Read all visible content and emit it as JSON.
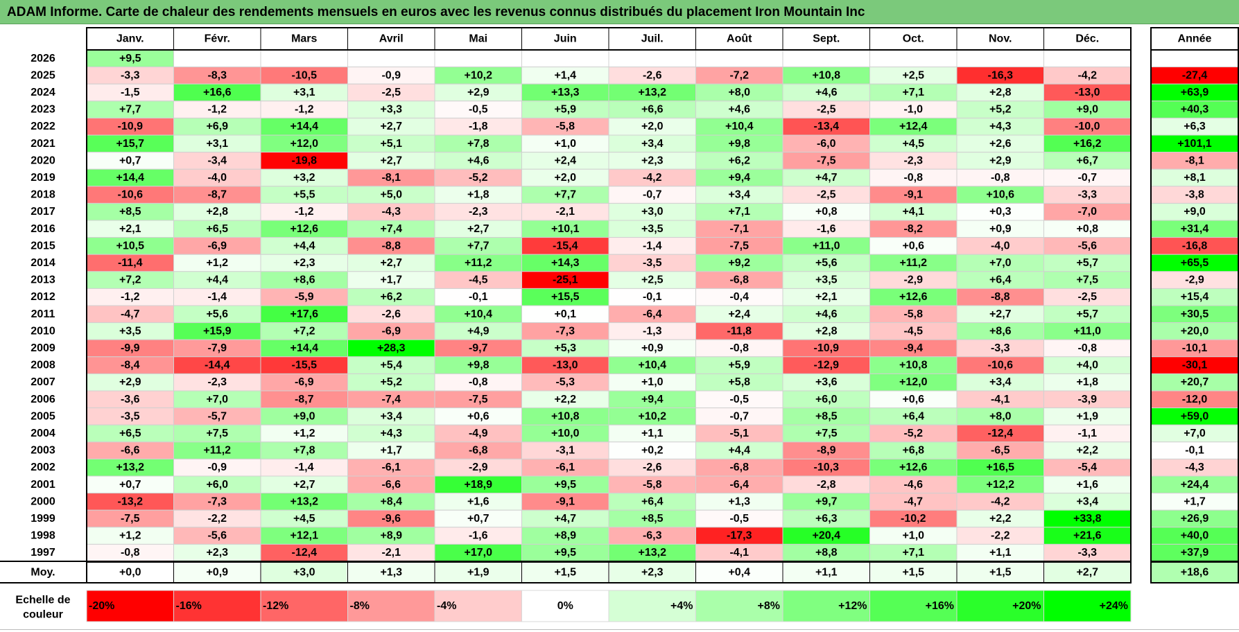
{
  "title": "ADAM Informe. Carte de chaleur des rendements mensuels en euros avec les revenus connus distribués du placement Iron Mountain Inc",
  "chart_data": {
    "type": "heatmap",
    "title": "ADAM Informe. Carte de chaleur des rendements mensuels en euros avec les revenus connus distribués du placement Iron Mountain Inc",
    "columns": [
      "Janv.",
      "Févr.",
      "Mars",
      "Avril",
      "Mai",
      "Juin",
      "Juil.",
      "Août",
      "Sept.",
      "Oct.",
      "Nov.",
      "Déc."
    ],
    "year_column_label": "Année",
    "rows": [
      {
        "year": "2026",
        "months": [
          "+9,5",
          "",
          "",
          "",
          "",
          "",
          "",
          "",
          "",
          "",
          "",
          ""
        ],
        "annual": ""
      },
      {
        "year": "2025",
        "months": [
          "-3,3",
          "-8,3",
          "-10,5",
          "-0,9",
          "+10,2",
          "+1,4",
          "-2,6",
          "-7,2",
          "+10,8",
          "+2,5",
          "-16,3",
          "-4,2"
        ],
        "annual": "-27,4"
      },
      {
        "year": "2024",
        "months": [
          "-1,5",
          "+16,6",
          "+3,1",
          "-2,5",
          "+2,9",
          "+13,3",
          "+13,2",
          "+8,0",
          "+4,6",
          "+7,1",
          "+2,8",
          "-13,0"
        ],
        "annual": "+63,9"
      },
      {
        "year": "2023",
        "months": [
          "+7,7",
          "-1,2",
          "-1,2",
          "+3,3",
          "-0,5",
          "+5,9",
          "+6,6",
          "+4,6",
          "-2,5",
          "-1,0",
          "+5,2",
          "+9,0"
        ],
        "annual": "+40,3"
      },
      {
        "year": "2022",
        "months": [
          "-10,9",
          "+6,9",
          "+14,4",
          "+2,7",
          "-1,8",
          "-5,8",
          "+2,0",
          "+10,4",
          "-13,4",
          "+12,4",
          "+4,3",
          "-10,0"
        ],
        "annual": "+6,3"
      },
      {
        "year": "2021",
        "months": [
          "+15,7",
          "+3,1",
          "+12,0",
          "+5,1",
          "+7,8",
          "+1,0",
          "+3,4",
          "+9,8",
          "-6,0",
          "+4,5",
          "+2,6",
          "+16,2"
        ],
        "annual": "+101,1"
      },
      {
        "year": "2020",
        "months": [
          "+0,7",
          "-3,4",
          "-19,8",
          "+2,7",
          "+4,6",
          "+2,4",
          "+2,3",
          "+6,2",
          "-7,5",
          "-2,3",
          "+2,9",
          "+6,7"
        ],
        "annual": "-8,1"
      },
      {
        "year": "2019",
        "months": [
          "+14,4",
          "-4,0",
          "+3,2",
          "-8,1",
          "-5,2",
          "+2,0",
          "-4,2",
          "+9,4",
          "+4,7",
          "-0,8",
          "-0,8",
          "-0,7"
        ],
        "annual": "+8,1"
      },
      {
        "year": "2018",
        "months": [
          "-10,6",
          "-8,7",
          "+5,5",
          "+5,0",
          "+1,8",
          "+7,7",
          "-0,7",
          "+3,4",
          "-2,5",
          "-9,1",
          "+10,6",
          "-3,3"
        ],
        "annual": "-3,8"
      },
      {
        "year": "2017",
        "months": [
          "+8,5",
          "+2,8",
          "-1,2",
          "-4,3",
          "-2,3",
          "-2,1",
          "+3,0",
          "+7,1",
          "+0,8",
          "+4,1",
          "+0,3",
          "-7,0"
        ],
        "annual": "+9,0"
      },
      {
        "year": "2016",
        "months": [
          "+2,1",
          "+6,5",
          "+12,6",
          "+7,4",
          "+2,7",
          "+10,1",
          "+3,5",
          "-7,1",
          "-1,6",
          "-8,2",
          "+0,9",
          "+0,8"
        ],
        "annual": "+31,4"
      },
      {
        "year": "2015",
        "months": [
          "+10,5",
          "-6,9",
          "+4,4",
          "-8,8",
          "+7,7",
          "-15,4",
          "-1,4",
          "-7,5",
          "+11,0",
          "+0,6",
          "-4,0",
          "-5,6"
        ],
        "annual": "-16,8"
      },
      {
        "year": "2014",
        "months": [
          "-11,4",
          "+1,2",
          "+2,3",
          "+2,7",
          "+11,2",
          "+14,3",
          "-3,5",
          "+9,2",
          "+5,6",
          "+11,2",
          "+7,0",
          "+5,7"
        ],
        "annual": "+65,5"
      },
      {
        "year": "2013",
        "months": [
          "+7,2",
          "+4,4",
          "+8,6",
          "+1,7",
          "-4,5",
          "-25,1",
          "+2,5",
          "-6,8",
          "+3,5",
          "-2,9",
          "+6,4",
          "+7,5"
        ],
        "annual": "-2,9"
      },
      {
        "year": "2012",
        "months": [
          "-1,2",
          "-1,4",
          "-5,9",
          "+6,2",
          "-0,1",
          "+15,5",
          "-0,1",
          "-0,4",
          "+2,1",
          "+12,6",
          "-8,8",
          "-2,5"
        ],
        "annual": "+15,4"
      },
      {
        "year": "2011",
        "months": [
          "-4,7",
          "+5,6",
          "+17,6",
          "-2,6",
          "+10,4",
          "+0,1",
          "-6,4",
          "+2,4",
          "+4,6",
          "-5,8",
          "+2,7",
          "+5,7"
        ],
        "annual": "+30,5"
      },
      {
        "year": "2010",
        "months": [
          "+3,5",
          "+15,9",
          "+7,2",
          "-6,9",
          "+4,9",
          "-7,3",
          "-1,3",
          "-11,8",
          "+2,8",
          "-4,5",
          "+8,6",
          "+11,0"
        ],
        "annual": "+20,0"
      },
      {
        "year": "2009",
        "months": [
          "-9,9",
          "-7,9",
          "+14,4",
          "+28,3",
          "-9,7",
          "+5,3",
          "+0,9",
          "-0,8",
          "-10,9",
          "-9,4",
          "-3,3",
          "-0,8"
        ],
        "annual": "-10,1"
      },
      {
        "year": "2008",
        "months": [
          "-8,4",
          "-14,4",
          "-15,5",
          "+5,4",
          "+9,8",
          "-13,0",
          "+10,4",
          "+5,9",
          "-12,9",
          "+10,8",
          "-10,6",
          "+4,0"
        ],
        "annual": "-30,1"
      },
      {
        "year": "2007",
        "months": [
          "+2,9",
          "-2,3",
          "-6,9",
          "+5,2",
          "-0,8",
          "-5,3",
          "+1,0",
          "+5,8",
          "+3,6",
          "+12,0",
          "+3,4",
          "+1,8"
        ],
        "annual": "+20,7"
      },
      {
        "year": "2006",
        "months": [
          "-3,6",
          "+7,0",
          "-8,7",
          "-7,4",
          "-7,5",
          "+2,2",
          "+9,4",
          "-0,5",
          "+6,0",
          "+0,6",
          "-4,1",
          "-3,9"
        ],
        "annual": "-12,0"
      },
      {
        "year": "2005",
        "months": [
          "-3,5",
          "-5,7",
          "+9,0",
          "+3,4",
          "+0,6",
          "+10,8",
          "+10,2",
          "-0,7",
          "+8,5",
          "+6,4",
          "+8,0",
          "+1,9"
        ],
        "annual": "+59,0"
      },
      {
        "year": "2004",
        "months": [
          "+6,5",
          "+7,5",
          "+1,2",
          "+4,3",
          "-4,9",
          "+10,0",
          "+1,1",
          "-5,1",
          "+7,5",
          "-5,2",
          "-12,4",
          "-1,1"
        ],
        "annual": "+7,0"
      },
      {
        "year": "2003",
        "months": [
          "-6,6",
          "+11,2",
          "+7,8",
          "+1,7",
          "-6,8",
          "-3,1",
          "+0,2",
          "+4,4",
          "-8,9",
          "+6,8",
          "-6,5",
          "+2,2"
        ],
        "annual": "-0,1"
      },
      {
        "year": "2002",
        "months": [
          "+13,2",
          "-0,9",
          "-1,4",
          "-6,1",
          "-2,9",
          "-6,1",
          "-2,6",
          "-6,8",
          "-10,3",
          "+12,6",
          "+16,5",
          "-5,4"
        ],
        "annual": "-4,3"
      },
      {
        "year": "2001",
        "months": [
          "+0,7",
          "+6,0",
          "+2,7",
          "-6,6",
          "+18,9",
          "+9,5",
          "-5,8",
          "-6,4",
          "-2,8",
          "-4,6",
          "+12,2",
          "+1,6"
        ],
        "annual": "+24,4"
      },
      {
        "year": "2000",
        "months": [
          "-13,2",
          "-7,3",
          "+13,2",
          "+8,4",
          "+1,6",
          "-9,1",
          "+6,4",
          "+1,3",
          "+9,7",
          "-4,7",
          "-4,2",
          "+3,4"
        ],
        "annual": "+1,7"
      },
      {
        "year": "1999",
        "months": [
          "-7,5",
          "-2,2",
          "+4,5",
          "-9,6",
          "+0,7",
          "+4,7",
          "+8,5",
          "-0,5",
          "+6,3",
          "-10,2",
          "+2,2",
          "+33,8"
        ],
        "annual": "+26,9"
      },
      {
        "year": "1998",
        "months": [
          "+1,2",
          "-5,6",
          "+12,1",
          "+8,9",
          "-1,6",
          "+8,9",
          "-6,3",
          "-17,3",
          "+20,4",
          "+1,0",
          "-2,2",
          "+21,6"
        ],
        "annual": "+40,0"
      },
      {
        "year": "1997",
        "months": [
          "-0,8",
          "+2,3",
          "-12,4",
          "-2,1",
          "+17,0",
          "+9,5",
          "+13,2",
          "-4,1",
          "+8,8",
          "+7,1",
          "+1,1",
          "-3,3"
        ],
        "annual": "+37,9"
      }
    ],
    "average": {
      "label": "Moy.",
      "months": [
        "+0,0",
        "+0,9",
        "+3,0",
        "+1,3",
        "+1,9",
        "+1,5",
        "+2,3",
        "+0,4",
        "+1,1",
        "+1,5",
        "+1,5",
        "+2,7"
      ],
      "annual": "+18,6"
    },
    "scale": {
      "label_line1": "Echelle de",
      "label_line2": "couleur",
      "values": [
        -20,
        -16,
        -12,
        -8,
        -4,
        0,
        4,
        8,
        12,
        16,
        20,
        24
      ],
      "labels": [
        "-20%",
        "-16%",
        "-12%",
        "-8%",
        "-4%",
        "0%",
        "+4%",
        "+8%",
        "+12%",
        "+16%",
        "+20%",
        "+24%"
      ]
    },
    "colors": {
      "negative_max": "#ff0000",
      "positive_max": "#00ff00",
      "neutral": "#ffffff",
      "title_bar": "#7bc97b"
    }
  }
}
